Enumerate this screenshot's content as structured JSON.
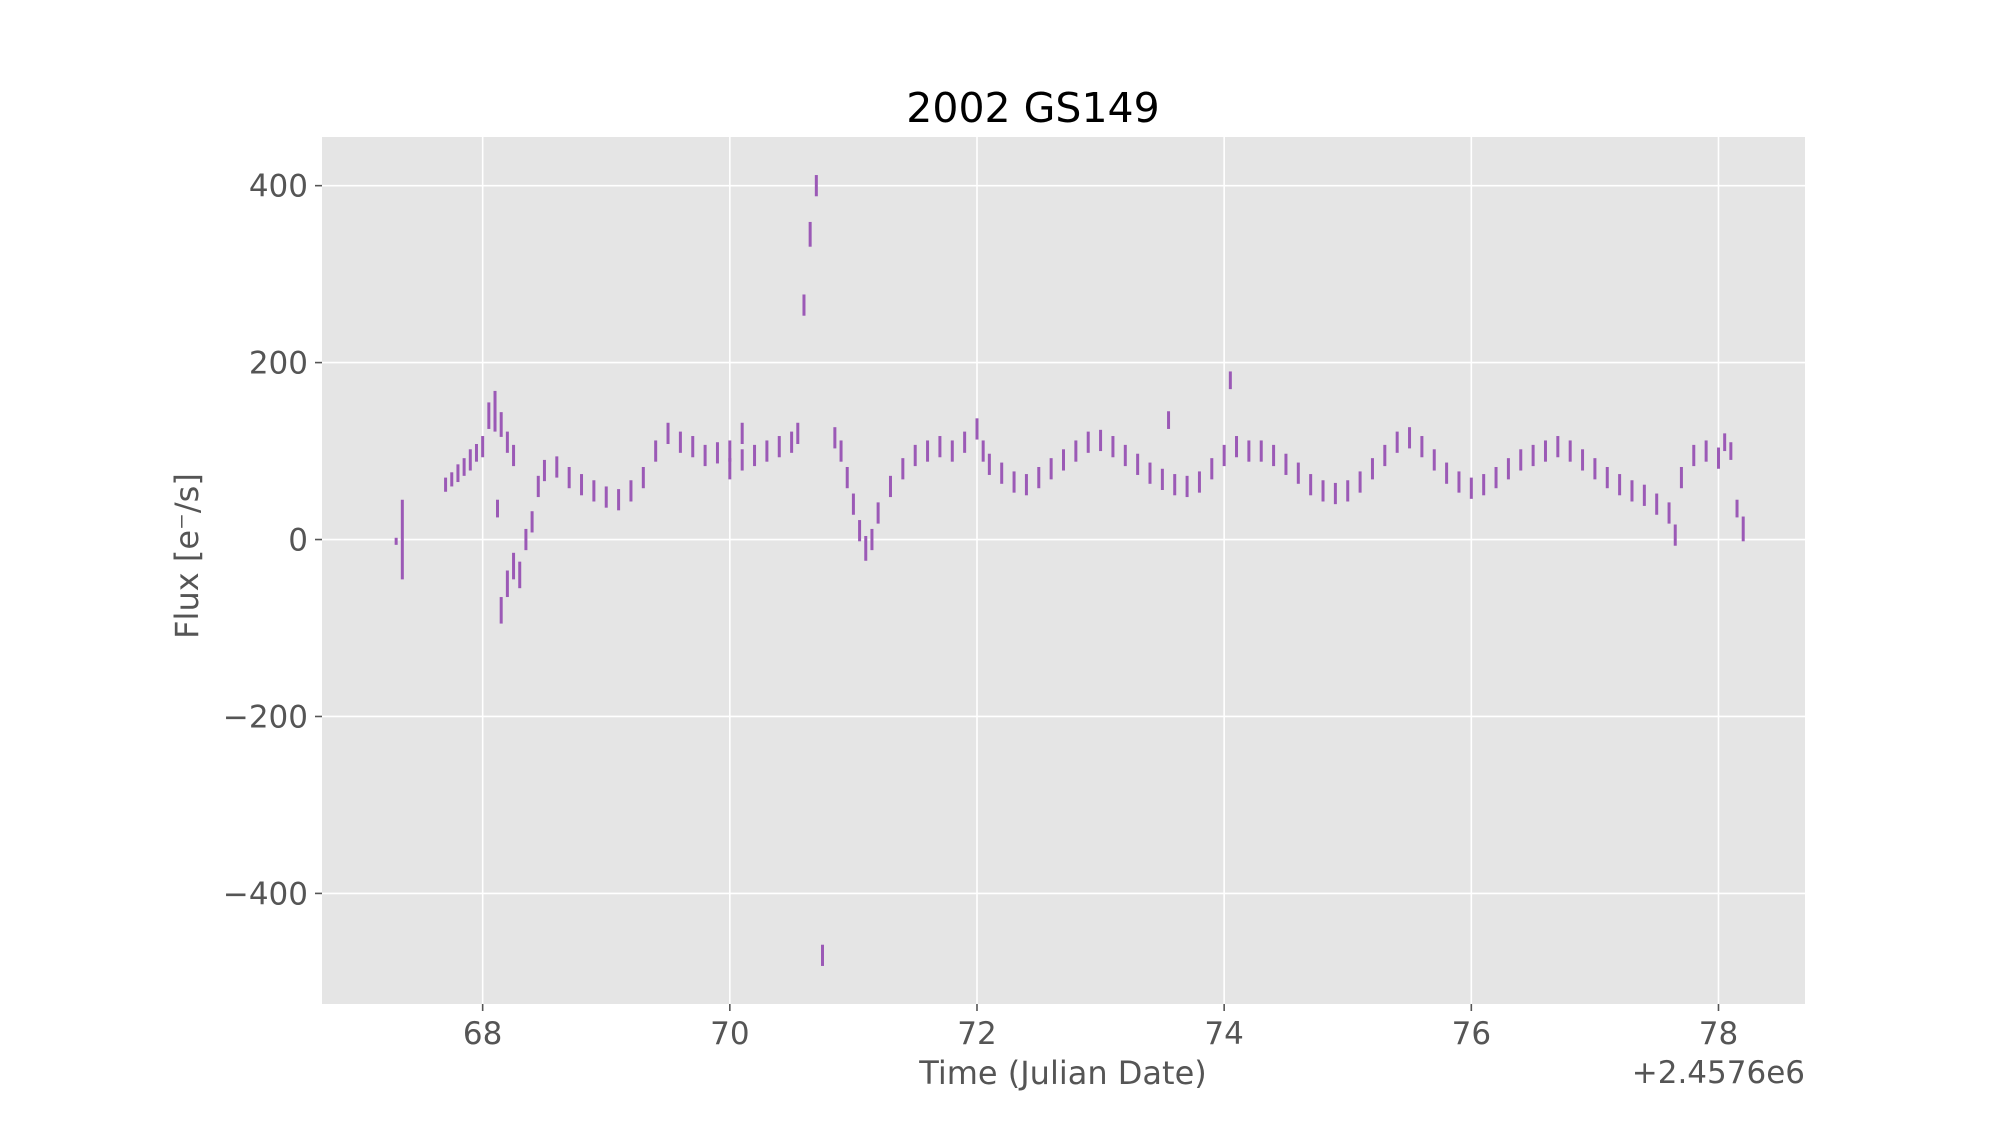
{
  "chart_data": {
    "type": "scatter",
    "title": "2002 GS149",
    "xlabel": "Time (Julian Date)",
    "ylabel": "Flux [e⁻/s]",
    "x_offset_label": "+2.4576e6",
    "x_offset": 2457600,
    "xlim": [
      66.7,
      78.7
    ],
    "ylim": [
      -525,
      455
    ],
    "x_ticks": [
      68,
      70,
      72,
      74,
      76,
      78
    ],
    "y_ticks": [
      -400,
      -200,
      0,
      200,
      400
    ],
    "grid": true,
    "background": "#e5e5e5",
    "series_color": "#9b59b6",
    "series": [
      {
        "style": "vertical error bars",
        "points": [
          [
            67.3,
            -2,
            4
          ],
          [
            67.35,
            0,
            45
          ],
          [
            67.7,
            62,
            8
          ],
          [
            67.75,
            68,
            8
          ],
          [
            67.8,
            75,
            10
          ],
          [
            67.85,
            82,
            10
          ],
          [
            67.9,
            90,
            12
          ],
          [
            67.95,
            98,
            10
          ],
          [
            68.0,
            105,
            12
          ],
          [
            68.05,
            140,
            15
          ],
          [
            68.1,
            150,
            18
          ],
          [
            68.15,
            130,
            14
          ],
          [
            68.2,
            110,
            12
          ],
          [
            68.25,
            95,
            12
          ],
          [
            68.1,
            130,
            8
          ],
          [
            68.12,
            35,
            10
          ],
          [
            68.15,
            -80,
            15
          ],
          [
            68.2,
            -50,
            15
          ],
          [
            68.25,
            -30,
            15
          ],
          [
            68.3,
            -40,
            15
          ],
          [
            68.35,
            0,
            12
          ],
          [
            68.4,
            20,
            12
          ],
          [
            68.45,
            60,
            12
          ],
          [
            68.5,
            78,
            12
          ],
          [
            68.6,
            82,
            12
          ],
          [
            68.7,
            70,
            12
          ],
          [
            68.8,
            62,
            12
          ],
          [
            68.9,
            55,
            12
          ],
          [
            69.0,
            48,
            12
          ],
          [
            69.1,
            45,
            12
          ],
          [
            69.2,
            55,
            12
          ],
          [
            69.3,
            70,
            12
          ],
          [
            69.4,
            100,
            12
          ],
          [
            69.5,
            120,
            12
          ],
          [
            69.6,
            110,
            12
          ],
          [
            69.7,
            105,
            12
          ],
          [
            69.8,
            95,
            12
          ],
          [
            69.9,
            98,
            12
          ],
          [
            70.0,
            100,
            12
          ],
          [
            70.1,
            120,
            12
          ],
          [
            70.0,
            80,
            12
          ],
          [
            70.1,
            90,
            12
          ],
          [
            70.2,
            95,
            12
          ],
          [
            70.3,
            100,
            12
          ],
          [
            70.4,
            105,
            12
          ],
          [
            70.5,
            110,
            12
          ],
          [
            70.55,
            120,
            12
          ],
          [
            70.6,
            265,
            12
          ],
          [
            70.65,
            345,
            14
          ],
          [
            70.7,
            400,
            12
          ],
          [
            70.75,
            -470,
            12
          ],
          [
            70.85,
            115,
            12
          ],
          [
            70.9,
            100,
            12
          ],
          [
            70.95,
            70,
            12
          ],
          [
            71.0,
            40,
            12
          ],
          [
            71.05,
            10,
            12
          ],
          [
            71.1,
            -10,
            14
          ],
          [
            71.15,
            0,
            12
          ],
          [
            71.2,
            30,
            12
          ],
          [
            71.3,
            60,
            12
          ],
          [
            71.4,
            80,
            12
          ],
          [
            71.5,
            95,
            12
          ],
          [
            71.6,
            100,
            12
          ],
          [
            71.7,
            105,
            12
          ],
          [
            71.8,
            100,
            12
          ],
          [
            71.9,
            110,
            12
          ],
          [
            72.0,
            125,
            12
          ],
          [
            72.05,
            100,
            12
          ],
          [
            72.1,
            85,
            12
          ],
          [
            72.2,
            75,
            12
          ],
          [
            72.3,
            65,
            12
          ],
          [
            72.4,
            62,
            12
          ],
          [
            72.5,
            70,
            12
          ],
          [
            72.6,
            80,
            12
          ],
          [
            72.7,
            90,
            12
          ],
          [
            72.8,
            100,
            12
          ],
          [
            72.9,
            110,
            12
          ],
          [
            73.0,
            112,
            12
          ],
          [
            73.1,
            105,
            12
          ],
          [
            73.2,
            95,
            12
          ],
          [
            73.3,
            85,
            12
          ],
          [
            73.4,
            75,
            12
          ],
          [
            73.5,
            68,
            12
          ],
          [
            73.55,
            135,
            10
          ],
          [
            73.6,
            62,
            12
          ],
          [
            73.7,
            60,
            12
          ],
          [
            73.8,
            65,
            12
          ],
          [
            73.9,
            80,
            12
          ],
          [
            74.0,
            95,
            12
          ],
          [
            74.05,
            180,
            10
          ],
          [
            74.1,
            105,
            12
          ],
          [
            74.2,
            100,
            12
          ],
          [
            74.3,
            100,
            12
          ],
          [
            74.4,
            95,
            12
          ],
          [
            74.5,
            85,
            12
          ],
          [
            74.6,
            75,
            12
          ],
          [
            74.7,
            62,
            12
          ],
          [
            74.8,
            55,
            12
          ],
          [
            74.9,
            52,
            12
          ],
          [
            75.0,
            55,
            12
          ],
          [
            75.1,
            65,
            12
          ],
          [
            75.2,
            80,
            12
          ],
          [
            75.3,
            95,
            12
          ],
          [
            75.4,
            110,
            12
          ],
          [
            75.5,
            115,
            12
          ],
          [
            75.6,
            105,
            12
          ],
          [
            75.7,
            90,
            12
          ],
          [
            75.8,
            75,
            12
          ],
          [
            75.9,
            65,
            12
          ],
          [
            76.0,
            58,
            12
          ],
          [
            76.1,
            62,
            12
          ],
          [
            76.2,
            70,
            12
          ],
          [
            76.3,
            80,
            12
          ],
          [
            76.4,
            90,
            12
          ],
          [
            76.5,
            95,
            12
          ],
          [
            76.6,
            100,
            12
          ],
          [
            76.7,
            105,
            12
          ],
          [
            76.8,
            100,
            12
          ],
          [
            76.9,
            90,
            12
          ],
          [
            77.0,
            80,
            12
          ],
          [
            77.1,
            70,
            12
          ],
          [
            77.2,
            62,
            12
          ],
          [
            77.3,
            55,
            12
          ],
          [
            77.4,
            50,
            12
          ],
          [
            77.5,
            40,
            12
          ],
          [
            77.6,
            30,
            12
          ],
          [
            77.65,
            5,
            12
          ],
          [
            77.7,
            70,
            12
          ],
          [
            77.8,
            95,
            12
          ],
          [
            77.9,
            100,
            12
          ],
          [
            78.0,
            92,
            12
          ],
          [
            78.05,
            110,
            10
          ],
          [
            78.1,
            100,
            10
          ],
          [
            78.15,
            35,
            10
          ],
          [
            78.2,
            12,
            14
          ]
        ]
      }
    ]
  }
}
